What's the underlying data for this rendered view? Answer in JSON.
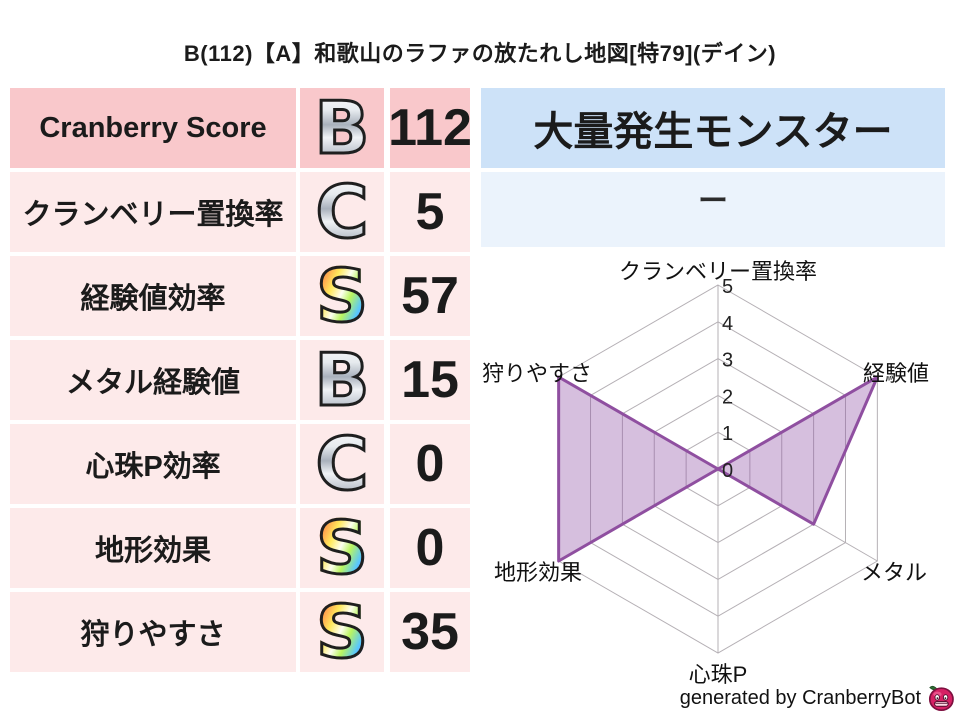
{
  "title": "B(112)【A】和歌山のラファの放たれし地図[特79](デイン)",
  "stats": {
    "rows": [
      {
        "label": "Cranberry Score",
        "rank": "B",
        "rank_style": "silver",
        "value": "112"
      },
      {
        "label": "クランベリー置換率",
        "rank": "C",
        "rank_style": "silver",
        "value": "5"
      },
      {
        "label": "経験値効率",
        "rank": "S",
        "rank_style": "rainbow",
        "value": "57"
      },
      {
        "label": "メタル経験値",
        "rank": "B",
        "rank_style": "silver",
        "value": "15"
      },
      {
        "label": "心珠P効率",
        "rank": "C",
        "rank_style": "silver",
        "value": "0"
      },
      {
        "label": "地形効果",
        "rank": "S",
        "rank_style": "rainbow",
        "value": "0"
      },
      {
        "label": "狩りやすさ",
        "rank": "S",
        "rank_style": "rainbow",
        "value": "35"
      }
    ]
  },
  "outbreak": {
    "header": "大量発生モンスター",
    "value": "ー"
  },
  "footer": {
    "credit": "generated by CranberryBot"
  },
  "colors": {
    "row_highlight": "#f9c8cb",
    "row_normal": "#fdeaea",
    "panel_header_blue": "#cde2f8",
    "panel_body_blue": "#ebf3fc",
    "radar_stroke": "#8f4fa0",
    "radar_fill": "rgba(147,87,167,0.38)",
    "grid": "#b5b0b5"
  },
  "chart_data": {
    "type": "radar",
    "axes": [
      "クランベリー置換率",
      "経験値",
      "メタル",
      "心珠P",
      "地形効果",
      "狩りやすさ"
    ],
    "values": [
      0,
      5,
      3,
      0,
      5,
      5
    ],
    "ticks": [
      0,
      1,
      2,
      3,
      4,
      5
    ],
    "range": [
      0,
      5
    ],
    "grid": true,
    "legend": false,
    "stroke_color": "#8f4fa0",
    "fill_color": "rgba(147,87,167,0.38)"
  }
}
